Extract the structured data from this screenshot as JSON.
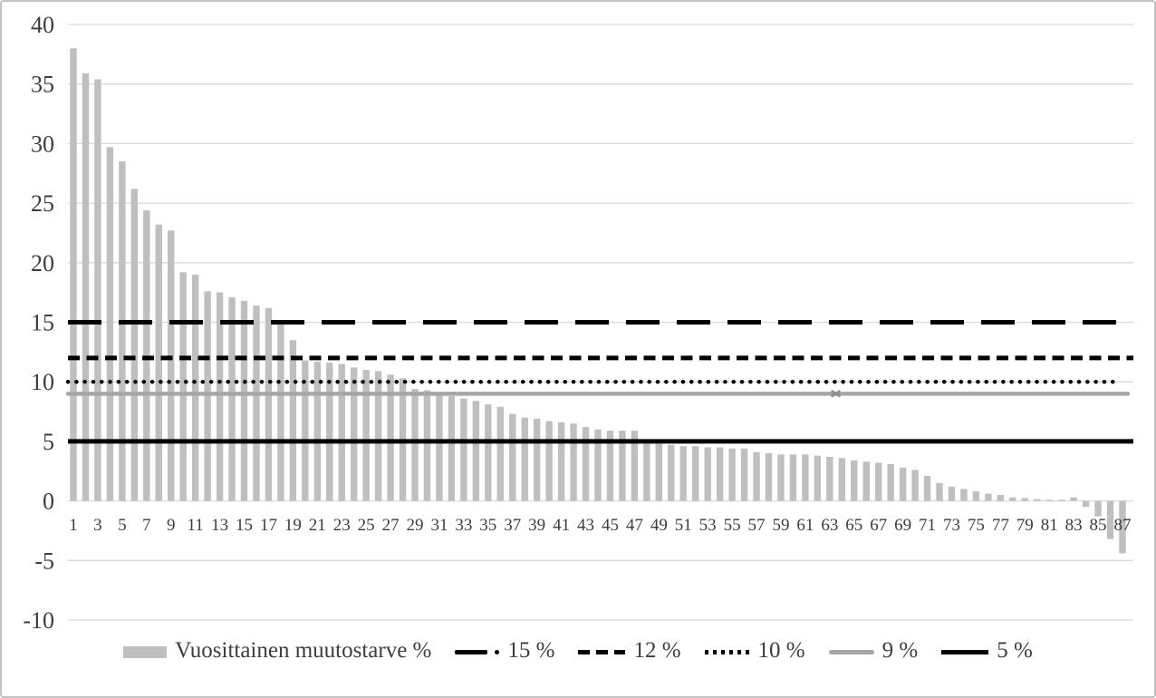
{
  "legend": {
    "items": [
      {
        "label": "Vuosittainen muutostarve %",
        "swatch": "bar"
      },
      {
        "label": "15 %",
        "swatch": "dash-dot"
      },
      {
        "label": "12 %",
        "swatch": "dash"
      },
      {
        "label": "10 %",
        "swatch": "dot"
      },
      {
        "label": "9 %",
        "swatch": "solid-gray"
      },
      {
        "label": "5 %",
        "swatch": "solid-black"
      }
    ]
  },
  "chart_data": {
    "type": "bar",
    "title": "",
    "xlabel": "",
    "ylabel": "",
    "series_name": "Vuosittainen muutostarve %",
    "x": [
      1,
      2,
      3,
      4,
      5,
      6,
      7,
      8,
      9,
      10,
      11,
      12,
      13,
      14,
      15,
      16,
      17,
      18,
      19,
      20,
      21,
      22,
      23,
      24,
      25,
      26,
      27,
      28,
      29,
      30,
      31,
      32,
      33,
      34,
      35,
      36,
      37,
      38,
      39,
      40,
      41,
      42,
      43,
      44,
      45,
      46,
      47,
      48,
      49,
      50,
      51,
      52,
      53,
      54,
      55,
      56,
      57,
      58,
      59,
      60,
      61,
      62,
      63,
      64,
      65,
      66,
      67,
      68,
      69,
      70,
      71,
      72,
      73,
      74,
      75,
      76,
      77,
      78,
      79,
      80,
      81,
      82,
      83,
      84,
      85,
      86,
      87
    ],
    "values": [
      38.0,
      35.9,
      35.4,
      29.7,
      28.5,
      26.2,
      24.4,
      23.2,
      22.7,
      19.2,
      19.0,
      17.6,
      17.5,
      17.1,
      16.8,
      16.4,
      16.2,
      15.1,
      13.5,
      11.8,
      11.7,
      11.6,
      11.5,
      11.2,
      11.0,
      10.9,
      10.6,
      10.3,
      9.4,
      9.3,
      9.1,
      8.8,
      8.6,
      8.4,
      8.1,
      7.9,
      7.3,
      7.0,
      6.9,
      6.7,
      6.6,
      6.5,
      6.2,
      6.0,
      5.9,
      5.9,
      5.9,
      4.8,
      4.8,
      4.7,
      4.6,
      4.6,
      4.5,
      4.5,
      4.4,
      4.4,
      4.1,
      4.0,
      3.9,
      3.9,
      3.9,
      3.8,
      3.7,
      3.6,
      3.4,
      3.3,
      3.2,
      3.1,
      2.8,
      2.6,
      2.1,
      1.5,
      1.2,
      1.0,
      0.8,
      0.6,
      0.5,
      0.3,
      0.25,
      0.15,
      0.1,
      0.1,
      0.3,
      -0.5,
      -1.3,
      -3.2,
      -4.4
    ],
    "reference_lines": [
      {
        "label": "15 %",
        "value": 15,
        "style": "long-dash",
        "color": "#000000",
        "width": 5
      },
      {
        "label": "12 %",
        "value": 12,
        "style": "dash",
        "color": "#000000",
        "width": 5
      },
      {
        "label": "10 %",
        "value": 10,
        "style": "dot",
        "color": "#000000",
        "width": 4.5
      },
      {
        "label": "9 %",
        "value": 9,
        "style": "solid",
        "color": "#a6a6a6",
        "width": 4.5
      },
      {
        "label": "5 %",
        "value": 5,
        "style": "solid",
        "color": "#000000",
        "width": 5
      }
    ],
    "marker_on_9_line": {
      "at_bar": 63.5,
      "style": "x",
      "color": "#8f8f8f"
    },
    "ylim": [
      -10,
      40
    ],
    "ytick_step": 5,
    "yticks": [
      40,
      35,
      30,
      25,
      20,
      15,
      10,
      5,
      0,
      -5,
      -10
    ],
    "xticks": [
      1,
      3,
      5,
      7,
      9,
      11,
      13,
      15,
      17,
      19,
      21,
      23,
      25,
      27,
      29,
      31,
      33,
      35,
      37,
      39,
      41,
      43,
      45,
      47,
      49,
      51,
      53,
      55,
      57,
      59,
      61,
      63,
      65,
      67,
      69,
      71,
      73,
      75,
      77,
      79,
      81,
      83,
      85,
      87
    ],
    "grid": true,
    "legend_position": "bottom",
    "bar_color": "#bfbfbf",
    "grid_color": "#d9d9d9",
    "text_color": "#3d3d3d"
  }
}
